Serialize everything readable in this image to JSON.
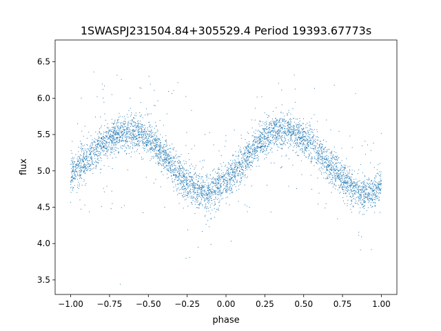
{
  "chart_data": {
    "type": "scatter",
    "title": "1SWASPJ231504.84+305529.4 Period 19393.67773s",
    "xlabel": "phase",
    "ylabel": "flux",
    "xlim": [
      -1.1,
      1.1
    ],
    "ylim": [
      3.3,
      6.8
    ],
    "xticks": [
      -1.0,
      -0.75,
      -0.5,
      -0.25,
      0.0,
      0.25,
      0.5,
      0.75,
      1.0
    ],
    "xtick_labels": [
      "−1.00",
      "−0.75",
      "−0.50",
      "−0.25",
      "0.00",
      "0.25",
      "0.50",
      "0.75",
      "1.00"
    ],
    "yticks": [
      3.5,
      4.0,
      4.5,
      5.0,
      5.5,
      6.0,
      6.5
    ],
    "ytick_labels": [
      "3.5",
      "4.0",
      "4.5",
      "5.0",
      "5.5",
      "6.0",
      "6.5"
    ],
    "grid": false,
    "marker_color": "#1f77b4",
    "phase_folded_curve": {
      "description_of_shape": "two cycles of a folded light curve",
      "x": [
        -1.0,
        -0.9,
        -0.8,
        -0.7,
        -0.6,
        -0.5,
        -0.4,
        -0.3,
        -0.2,
        -0.12,
        -0.05,
        0.0,
        0.1,
        0.2,
        0.3,
        0.4,
        0.5,
        0.6,
        0.7,
        0.8,
        0.88,
        0.95,
        1.0
      ],
      "y": [
        4.95,
        5.15,
        5.35,
        5.5,
        5.55,
        5.45,
        5.2,
        4.95,
        4.75,
        4.68,
        4.78,
        4.85,
        5.1,
        5.35,
        5.52,
        5.55,
        5.45,
        5.25,
        5.0,
        4.78,
        4.68,
        4.72,
        4.82
      ],
      "scatter_sigma": 0.12
    }
  }
}
